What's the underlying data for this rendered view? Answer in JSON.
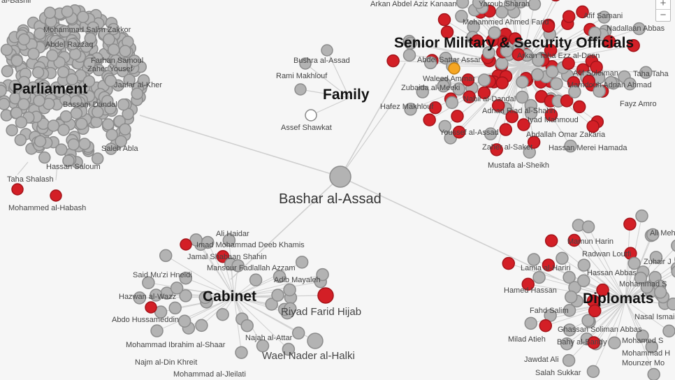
{
  "colors": {
    "gray_node": "#b3b3b3",
    "red_node": "#d31f26",
    "orange_node": "#f5a623",
    "white_node": "#ffffff",
    "edge": "#cfcfcf"
  },
  "hub": {
    "name": "Bashar al-Assad"
  },
  "zoom_controls": {
    "zoom_in": "+",
    "zoom_out": "−"
  },
  "clusters": {
    "parliament": {
      "title": "Parliament",
      "labels": [
        "al-Bashir",
        "Mohammad Salim Zakkor",
        "Abdel Razzaq",
        "Farhan Samoul",
        "Zaher Yousef",
        "Jaafar al-Kher",
        "Bassam Dandal",
        "Saleh Abla",
        "Hassan Saloum",
        "Taha Shalash",
        "Mohammed al-Habash"
      ]
    },
    "family": {
      "title": "Family",
      "labels": [
        "Bushra al-Assad",
        "Rami Makhlouf",
        "Assef Shawkat"
      ]
    },
    "military": {
      "title": "Senior Military & Security Officials",
      "labels": [
        "Arkan Abdel Aziz Kanaan",
        "Yaroub Sharaa",
        "Afif Samani",
        "Nadallaan Abbas",
        "Mohammed Ahmed Farid",
        "Abdel Sattar Assar",
        "Arkan Taha Ezz al-Deen",
        "Waleed Ammar",
        "Zubaida al-Meeki",
        "Afif Suleiman",
        "Taha Taha",
        "Mamdouh Adnan Ahmad",
        "Nabil al-Dandal",
        "Hafez Makhlouf",
        "Fayz Amro",
        "Adnan Riad al-Shahri",
        "Iyad Mahmoud",
        "Youssef al-Assad",
        "Abdallah Omar Zakaria",
        "Zaher al-Saket",
        "Hassan Merei Hamada",
        "Mustafa al-Sheikh"
      ]
    },
    "cabinet": {
      "title": "Cabinet",
      "labels": [
        "Ali Haidar",
        "Imad Mohammad Deeb Khamis",
        "Jamal Shabaan Shahin",
        "Mansour Fadlallah Azzam",
        "Said Mu'zi Hneidi",
        "Adib Mayaleh",
        "Hazwan al-Wazz",
        "Riyad Farid Hijab",
        "Abdo Hussameddin",
        "Najah al-Attar",
        "Mohammad Ibrahim al-Shaar",
        "Wael Nader al-Halki",
        "Najm al-Din Khreit",
        "Mohammad al-Jleilati"
      ]
    },
    "diplomats": {
      "title": "Diplomats",
      "labels": [
        "Ali Mehsen",
        "Mamun Harin",
        "Radwan Loutfi",
        "Zuhair J",
        "Lamia al-Hariri",
        "Hassan Abbas",
        "Mohammad S",
        "Hamed Hassan",
        "Fahd Salim",
        "Nasal Ismail",
        "Ghassan Soliman Abbas",
        "Milad Atieh",
        "Bahy al-Bandy",
        "Mohamed S",
        "Mohammad H",
        "Mounzer Mo",
        "Jawdat Ali",
        "Salah Sukkar"
      ]
    }
  }
}
